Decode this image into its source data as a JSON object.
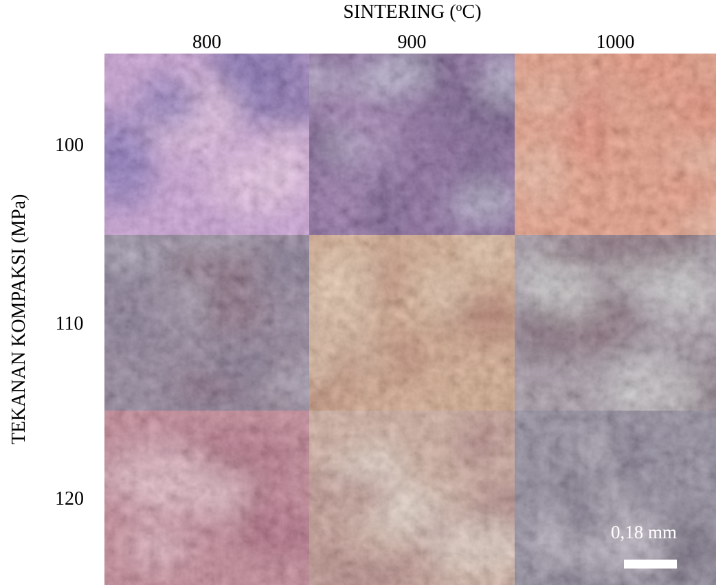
{
  "figure": {
    "title": {
      "prefix": "SINTERING (",
      "sup": "o",
      "suffix": "C)"
    },
    "columns": [
      "800",
      "900",
      "1000"
    ],
    "rows": [
      "100",
      "110",
      "120"
    ],
    "y_label": "TEKANAN KOMPAKSI (MPa)",
    "scale_bar": "0,18 mm"
  }
}
